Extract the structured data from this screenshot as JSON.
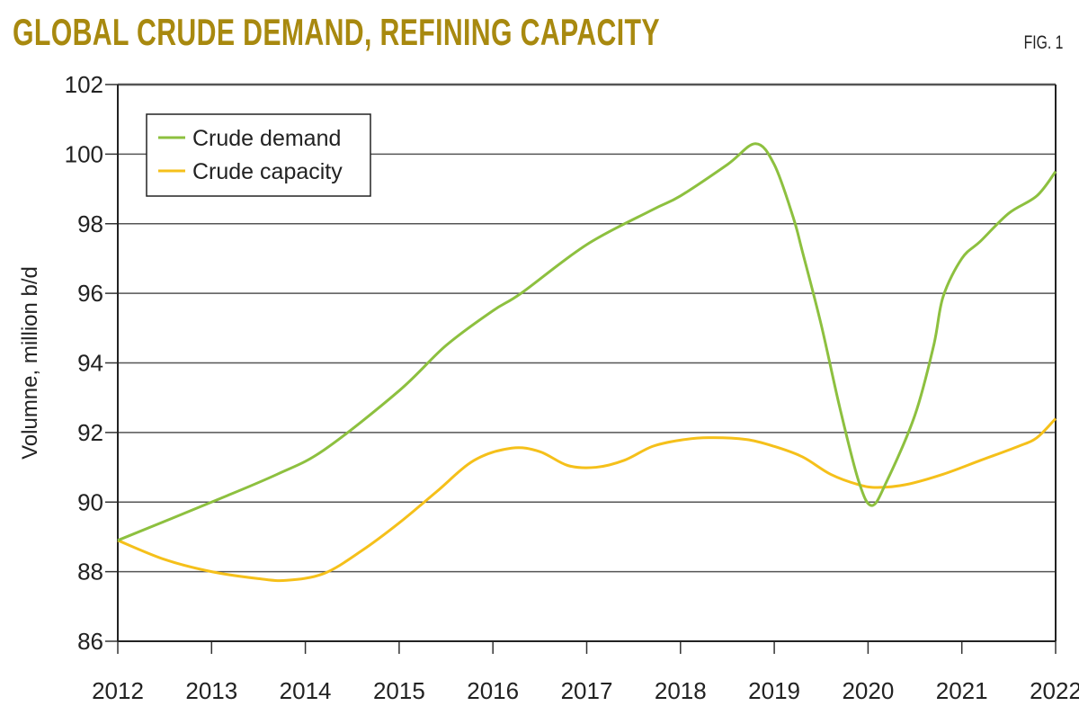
{
  "header": {
    "title": "GLOBAL CRUDE DEMAND, REFINING CAPACITY",
    "fig_label": "FIG. 1"
  },
  "chart_data": {
    "type": "line",
    "title": "GLOBAL CRUDE DEMAND, REFINING CAPACITY",
    "xlabel": "",
    "ylabel": "Volumne, million b/d",
    "xlim": [
      2012,
      2022
    ],
    "ylim": [
      86,
      102
    ],
    "xticks": [
      2012,
      2013,
      2014,
      2015,
      2016,
      2017,
      2018,
      2019,
      2020,
      2021,
      2022
    ],
    "yticks": [
      86,
      88,
      90,
      92,
      94,
      96,
      98,
      100,
      102
    ],
    "grid": "horizontal",
    "legend": "top-left",
    "series": [
      {
        "name": "Crude demand",
        "color": "#8dc03f",
        "points": [
          [
            2012,
            88.9
          ],
          [
            2013,
            90.0
          ],
          [
            2013.7,
            90.8
          ],
          [
            2014.2,
            91.5
          ],
          [
            2015,
            93.2
          ],
          [
            2015.5,
            94.5
          ],
          [
            2016,
            95.5
          ],
          [
            2016.3,
            96.0
          ],
          [
            2017,
            97.4
          ],
          [
            2017.7,
            98.4
          ],
          [
            2018,
            98.8
          ],
          [
            2018.5,
            99.7
          ],
          [
            2018.8,
            100.3
          ],
          [
            2019,
            99.7
          ],
          [
            2019.2,
            98.2
          ],
          [
            2019.3,
            97.2
          ],
          [
            2019.5,
            95.1
          ],
          [
            2019.7,
            92.7
          ],
          [
            2019.9,
            90.6
          ],
          [
            2020.04,
            89.9
          ],
          [
            2020.2,
            90.6
          ],
          [
            2020.5,
            92.5
          ],
          [
            2020.7,
            94.5
          ],
          [
            2020.8,
            95.9
          ],
          [
            2021,
            97.0
          ],
          [
            2021.2,
            97.5
          ],
          [
            2021.5,
            98.3
          ],
          [
            2021.8,
            98.8
          ],
          [
            2022,
            99.5
          ]
        ]
      },
      {
        "name": "Crude capacity",
        "color": "#f5c01a",
        "points": [
          [
            2012,
            88.9
          ],
          [
            2012.5,
            88.35
          ],
          [
            2013,
            88.0
          ],
          [
            2013.5,
            87.8
          ],
          [
            2013.8,
            87.75
          ],
          [
            2014.2,
            87.95
          ],
          [
            2014.6,
            88.6
          ],
          [
            2015,
            89.4
          ],
          [
            2015.4,
            90.3
          ],
          [
            2015.8,
            91.2
          ],
          [
            2016.2,
            91.55
          ],
          [
            2016.5,
            91.45
          ],
          [
            2016.8,
            91.05
          ],
          [
            2017.1,
            91.0
          ],
          [
            2017.4,
            91.2
          ],
          [
            2017.7,
            91.6
          ],
          [
            2018,
            91.78
          ],
          [
            2018.3,
            91.85
          ],
          [
            2018.7,
            91.8
          ],
          [
            2019,
            91.6
          ],
          [
            2019.3,
            91.3
          ],
          [
            2019.6,
            90.8
          ],
          [
            2019.9,
            90.5
          ],
          [
            2020.1,
            90.42
          ],
          [
            2020.4,
            90.5
          ],
          [
            2020.8,
            90.8
          ],
          [
            2021.2,
            91.2
          ],
          [
            2021.6,
            91.6
          ],
          [
            2021.8,
            91.85
          ],
          [
            2022,
            92.4
          ]
        ]
      }
    ]
  }
}
